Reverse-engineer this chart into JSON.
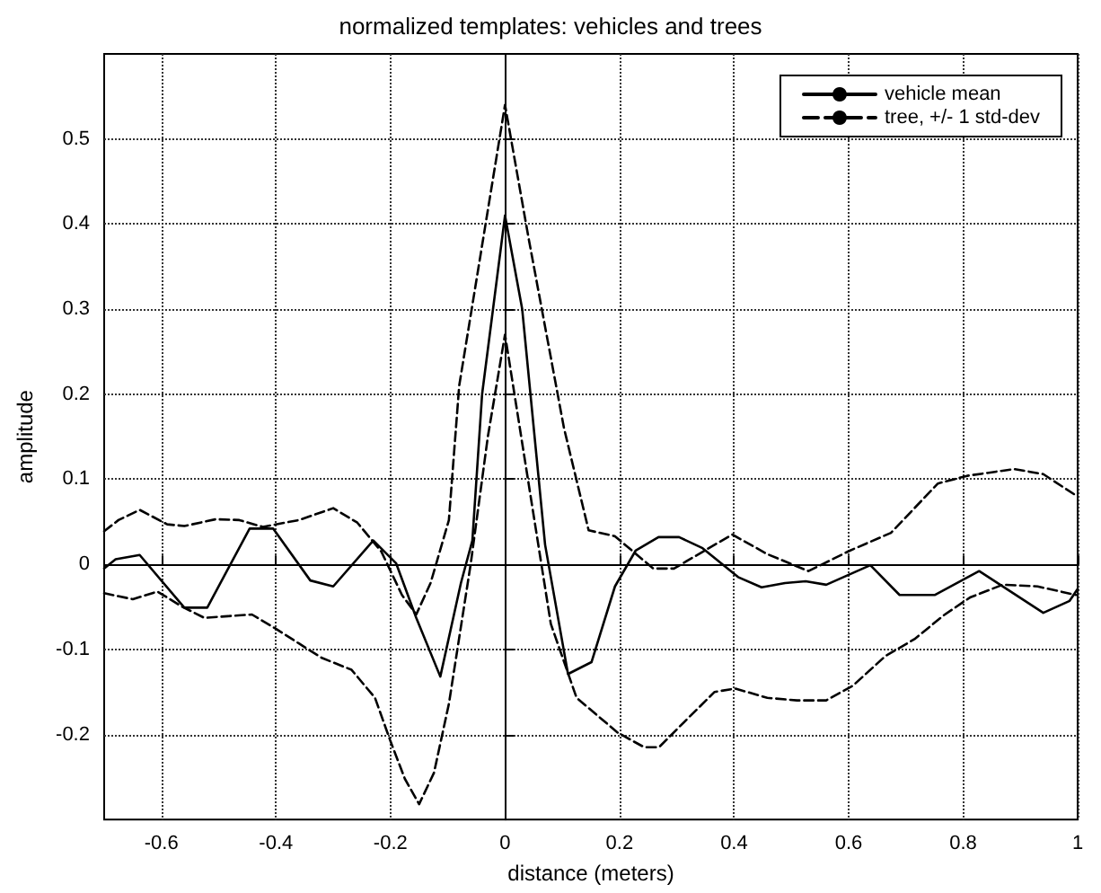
{
  "chart_data": {
    "type": "line",
    "title": "normalized templates: vehicles and trees",
    "xlabel": "distance (meters)",
    "ylabel": "amplitude",
    "xlim": [
      -0.7,
      1
    ],
    "xticks": [
      -0.6,
      -0.4,
      -0.2,
      0,
      0.2,
      0.4,
      0.6,
      0.8,
      1
    ],
    "ylim": [
      -0.3,
      0.6
    ],
    "yticks": [
      -0.2,
      -0.1,
      0,
      0.1,
      0.2,
      0.3,
      0.4,
      0.5
    ],
    "grid": true,
    "legend": "top right",
    "marker": "none",
    "series": [
      {
        "name": "vehicle mean",
        "color": "#000000",
        "line_style": "solid",
        "x": [
          -0.7,
          -0.68,
          -0.638,
          -0.56,
          -0.52,
          -0.446,
          -0.405,
          -0.34,
          -0.3,
          -0.23,
          -0.19,
          -0.155,
          -0.113,
          -0.077,
          -0.057,
          -0.04,
          0,
          0.03,
          0.07,
          0.11,
          0.151,
          0.192,
          0.228,
          0.268,
          0.304,
          0.345,
          0.407,
          0.448,
          0.489,
          0.525,
          0.561,
          0.638,
          0.689,
          0.751,
          0.828,
          0.94,
          0.986,
          1
        ],
        "values": [
          -0.005,
          0.006,
          0.011,
          -0.051,
          -0.051,
          0.042,
          0.042,
          -0.019,
          -0.026,
          0.028,
          0.001,
          -0.063,
          -0.132,
          -0.022,
          0.028,
          0.2,
          0.41,
          0.3,
          0.023,
          -0.129,
          -0.115,
          -0.026,
          0.016,
          0.032,
          0.032,
          0.019,
          -0.015,
          -0.027,
          -0.022,
          -0.02,
          -0.024,
          -0.001,
          -0.036,
          -0.036,
          -0.008,
          -0.057,
          -0.043,
          -0.029
        ]
      },
      {
        "name": "tree, +/- 1 std-dev",
        "color": "#000000",
        "line_style": "dashed",
        "x": [
          -0.7,
          -0.675,
          -0.638,
          -0.59,
          -0.56,
          -0.505,
          -0.464,
          -0.423,
          -0.36,
          -0.3,
          -0.258,
          -0.216,
          -0.18,
          -0.155,
          -0.13,
          -0.098,
          -0.08,
          0,
          0.041,
          0.103,
          0.146,
          0.192,
          0.259,
          0.295,
          0.356,
          0.397,
          0.458,
          0.53,
          0.602,
          0.674,
          0.756,
          0.807,
          0.889,
          0.94,
          0.997
        ],
        "values": [
          0.039,
          0.052,
          0.064,
          0.047,
          0.045,
          0.053,
          0.052,
          0.044,
          0.052,
          0.066,
          0.049,
          0.015,
          -0.036,
          -0.059,
          -0.022,
          0.052,
          0.21,
          0.54,
          0.384,
          0.16,
          0.04,
          0.033,
          -0.005,
          -0.005,
          0.019,
          0.035,
          0.012,
          -0.008,
          0.016,
          0.037,
          0.095,
          0.104,
          0.112,
          0.106,
          0.081
        ]
      },
      {
        "color": "#000000",
        "line_style": "dashed",
        "x": [
          -0.7,
          -0.65,
          -0.607,
          -0.566,
          -0.525,
          -0.484,
          -0.442,
          -0.402,
          -0.36,
          -0.32,
          -0.268,
          -0.227,
          -0.2,
          -0.175,
          -0.15,
          -0.124,
          -0.098,
          -0.06,
          -0.03,
          0,
          0.04,
          0.08,
          0.125,
          0.197,
          0.243,
          0.269,
          0.315,
          0.366,
          0.402,
          0.458,
          0.51,
          0.561,
          0.607,
          0.664,
          0.715,
          0.766,
          0.812,
          0.869,
          0.93,
          0.997
        ],
        "values": [
          -0.034,
          -0.041,
          -0.032,
          -0.049,
          -0.063,
          -0.061,
          -0.059,
          -0.075,
          -0.093,
          -0.11,
          -0.124,
          -0.157,
          -0.208,
          -0.252,
          -0.282,
          -0.245,
          -0.164,
          0.0,
          0.15,
          0.27,
          0.1,
          -0.07,
          -0.157,
          -0.198,
          -0.215,
          -0.215,
          -0.184,
          -0.15,
          -0.146,
          -0.157,
          -0.16,
          -0.16,
          -0.143,
          -0.108,
          -0.088,
          -0.06,
          -0.039,
          -0.024,
          -0.026,
          -0.036
        ]
      }
    ]
  }
}
